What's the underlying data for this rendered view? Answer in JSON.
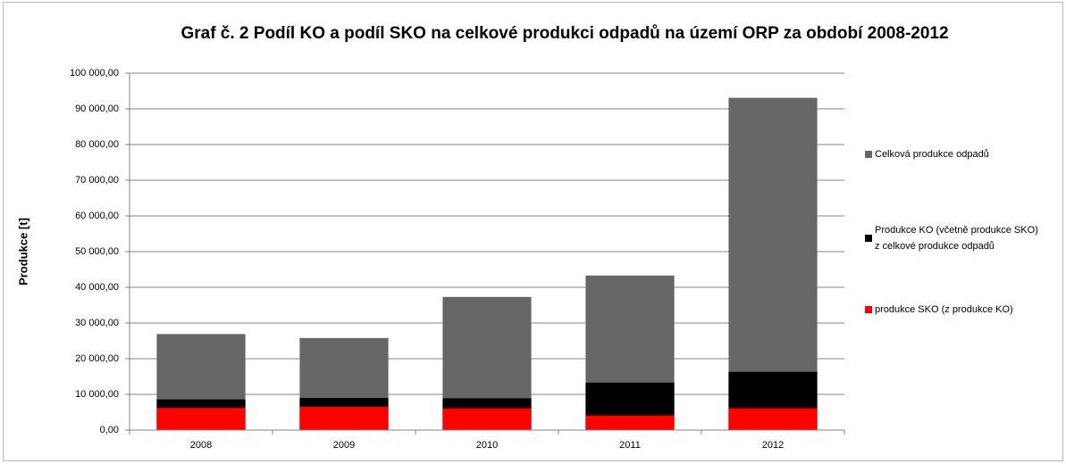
{
  "chart_data": {
    "type": "bar",
    "title": "Graf č. 2 Podíl KO a podíl SKO na celkové produkci odpadů na území ORP za období 2008-2012",
    "y_label": "Produkce [t]",
    "categories": [
      "2008",
      "2009",
      "2010",
      "2011",
      "2012"
    ],
    "series": [
      {
        "name": "Celková produkce odpadů",
        "color": "#666666",
        "values": [
          26900,
          25800,
          37300,
          43300,
          93100
        ]
      },
      {
        "name": "Produkce KO (včetně produkce SKO) z celkové produkce odpadů",
        "color": "#000000",
        "values": [
          8600,
          9000,
          8900,
          13300,
          16300
        ]
      },
      {
        "name": "produkce SKO (z produkce KO)",
        "color": "#ff0000",
        "values": [
          6200,
          6500,
          6100,
          4100,
          6100
        ]
      }
    ],
    "ylim": [
      0,
      100000
    ],
    "yticks": [
      {
        "value": 0,
        "label": "0,00"
      },
      {
        "value": 10000,
        "label": "10 000,00"
      },
      {
        "value": 20000,
        "label": "20 000,00"
      },
      {
        "value": 30000,
        "label": "30 000,00"
      },
      {
        "value": 40000,
        "label": "40 000,00"
      },
      {
        "value": 50000,
        "label": "50 000,00"
      },
      {
        "value": 60000,
        "label": "60 000,00"
      },
      {
        "value": 70000,
        "label": "70 000,00"
      },
      {
        "value": 80000,
        "label": "80 000,00"
      },
      {
        "value": 90000,
        "label": "90 000,00"
      },
      {
        "value": 100000,
        "label": "100 000,00"
      }
    ],
    "grid": true,
    "legend": "right"
  }
}
